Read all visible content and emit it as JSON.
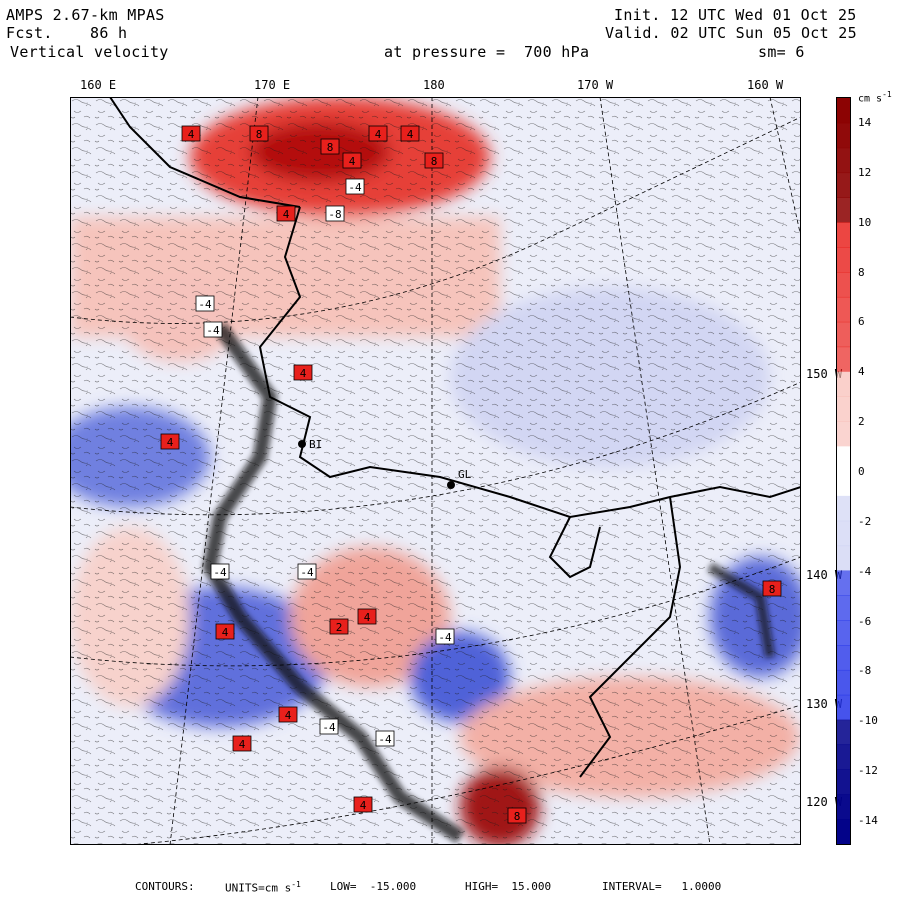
{
  "header": {
    "model": "AMPS 2.67-km MPAS",
    "fcst_label": "Fcst.",
    "fcst_value": "86 h",
    "field": "Vertical velocity",
    "level": "at pressure =  700 hPa",
    "init": "Init. 12 UTC Wed 01 Oct 25",
    "valid": "Valid. 02 UTC Sun 05 Oct 25",
    "smooth": "sm= 6"
  },
  "longitude_ticks": [
    "160 E",
    "170 E",
    "180",
    "170 W",
    "160 W"
  ],
  "latitude_labels": [
    "150 W",
    "140 W",
    "130 W",
    "120 W"
  ],
  "stations": [
    {
      "id": "BI"
    },
    {
      "id": "GL"
    }
  ],
  "contour_labels": [
    "4",
    "8",
    "4",
    "4",
    "8",
    "4",
    "8",
    "-4",
    "-8",
    "4",
    "-4",
    "-4",
    "4",
    "4",
    "-4",
    "-4",
    "2",
    "4",
    "4",
    "4",
    "-4",
    "4",
    "-4",
    "4",
    "8",
    "8",
    "-4"
  ],
  "colorbar": {
    "units": "cm s",
    "units_exp": "-1",
    "tick_labels": [
      "14",
      "12",
      "10",
      "8",
      "6",
      "4",
      "2",
      "0",
      "-2",
      "-4",
      "-6",
      "-8",
      "-10",
      "-12",
      "-14"
    ],
    "min": -15,
    "max": 15,
    "colors": {
      "dark_red": "#8b0000",
      "red": "#e8201c",
      "light_red": "#f7b8b0",
      "white": "#ffffff",
      "light_blue": "#c8cdf2",
      "blue": "#2030e8",
      "dark_blue": "#000088"
    }
  },
  "footer": {
    "contours": "CONTOURS:",
    "units_label": "UNITS=cm s",
    "units_exp": "-1",
    "low": "LOW=  -15.000",
    "high": "HIGH=  15.000",
    "interval": "INTERVAL=   1.0000"
  }
}
